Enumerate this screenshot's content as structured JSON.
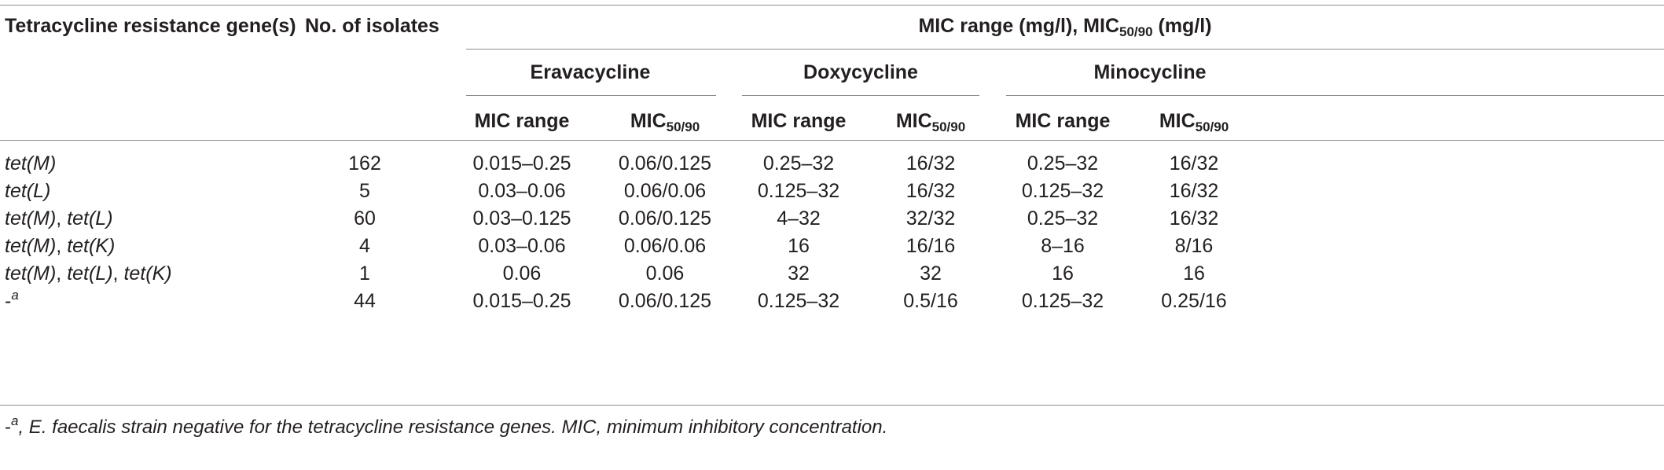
{
  "headers": {
    "gene_col": "Tetracycline resistance gene(s)",
    "isolates_col": "No. of isolates",
    "mic_group": "MIC range (mg/l), MIC",
    "mic_group_sub": "50/90",
    "mic_group_tail": " (mg/l)",
    "drugs": [
      "Eravacycline",
      "Doxycycline",
      "Minocycline"
    ],
    "range_label": "MIC range",
    "mic_label": "MIC",
    "mic_sub": "50/90"
  },
  "rows": [
    {
      "gene": [
        {
          "t": "tet(M)",
          "i": true
        }
      ],
      "n": "162",
      "vals": [
        "0.015–0.25",
        "0.06/0.125",
        "0.25–32",
        "16/32",
        "0.25–32",
        "16/32"
      ]
    },
    {
      "gene": [
        {
          "t": "tet(L)",
          "i": true
        }
      ],
      "n": "5",
      "vals": [
        "0.03–0.06",
        "0.06/0.06",
        "0.125–32",
        "16/32",
        "0.125–32",
        "16/32"
      ]
    },
    {
      "gene": [
        {
          "t": "tet(M)",
          "i": true
        },
        {
          "t": ", ",
          "i": false
        },
        {
          "t": "tet(L)",
          "i": true
        }
      ],
      "n": "60",
      "vals": [
        "0.03–0.125",
        "0.06/0.125",
        "4–32",
        "32/32",
        "0.25–32",
        "16/32"
      ]
    },
    {
      "gene": [
        {
          "t": "tet(M)",
          "i": true
        },
        {
          "t": ", ",
          "i": false
        },
        {
          "t": "tet(K)",
          "i": true
        }
      ],
      "n": "4",
      "vals": [
        "0.03–0.06",
        "0.06/0.06",
        "16",
        "16/16",
        "8–16",
        "8/16"
      ]
    },
    {
      "gene": [
        {
          "t": "tet(M)",
          "i": true
        },
        {
          "t": ", ",
          "i": false
        },
        {
          "t": "tet(L)",
          "i": true
        },
        {
          "t": ", ",
          "i": false
        },
        {
          "t": "tet(K)",
          "i": true
        }
      ],
      "n": "1",
      "vals": [
        "0.06",
        "0.06",
        "32",
        "32",
        "16",
        "16"
      ]
    },
    {
      "gene": [
        {
          "t": "-",
          "i": false
        },
        {
          "t": "a",
          "i": true,
          "sup": true
        }
      ],
      "n": "44",
      "vals": [
        "0.015–0.25",
        "0.06/0.125",
        "0.125–32",
        "0.5/16",
        "0.125–32",
        "0.25/16"
      ]
    }
  ],
  "footnote": {
    "dash": "-",
    "sup": "a",
    "text": ", E. faecalis strain negative for the tetracycline resistance genes. MIC, minimum inhibitory concentration."
  }
}
